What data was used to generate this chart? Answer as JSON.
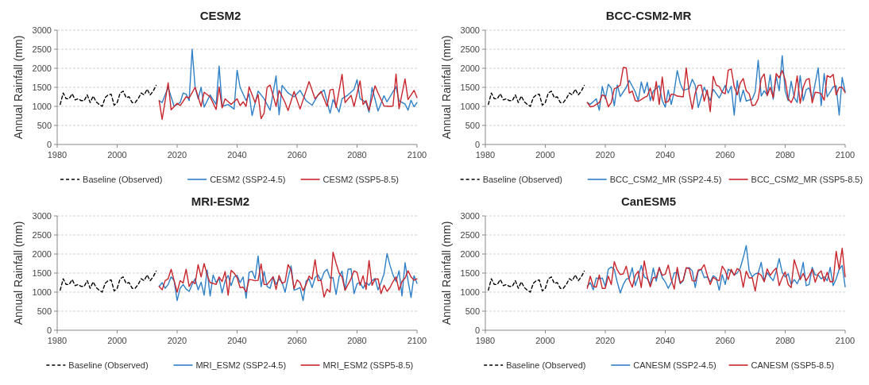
{
  "chart_data": [
    {
      "type": "line",
      "title": "CESM2",
      "ylabel": "Annual Rainfall (mm)",
      "xlim": [
        1980,
        2100
      ],
      "xticks": [
        1980,
        2000,
        2020,
        2040,
        2060,
        2080,
        2100
      ],
      "ylim": [
        0,
        3000
      ],
      "yticks": [
        0,
        500,
        1000,
        1500,
        2000,
        2500,
        3000
      ],
      "grid": "y",
      "legend": "bottom",
      "series": [
        {
          "name": "Baseline (Observed)",
          "color": "#000000",
          "line_style": "dashed",
          "x": [
            1981,
            1982,
            1983,
            1984,
            1985,
            1986,
            1987,
            1988,
            1989,
            1990,
            1991,
            1992,
            1993,
            1994,
            1995,
            1996,
            1997,
            1998,
            1999,
            2000,
            2001,
            2002,
            2003,
            2004,
            2005,
            2006,
            2007,
            2008,
            2009,
            2010,
            2011,
            2012,
            2013
          ],
          "values": [
            1050,
            1350,
            1200,
            1200,
            1330,
            1170,
            1200,
            1150,
            1150,
            1300,
            1100,
            1270,
            1120,
            1050,
            1000,
            1230,
            1300,
            1320,
            1030,
            1100,
            1350,
            1400,
            1230,
            1250,
            1100,
            1100,
            1200,
            1350,
            1300,
            1450,
            1300,
            1400,
            1550
          ]
        },
        {
          "name": "CESM2 (SSP2-4.5)",
          "color": "#2f80c6",
          "x": [
            2014,
            2015,
            2017,
            2019,
            2021,
            2022,
            2023,
            2024,
            2025,
            2026,
            2027,
            2028,
            2029,
            2031,
            2033,
            2034,
            2035,
            2037,
            2039,
            2040,
            2041,
            2043,
            2044,
            2045,
            2047,
            2049,
            2051,
            2053,
            2054,
            2055,
            2057,
            2059,
            2061,
            2063,
            2065,
            2067,
            2069,
            2071,
            2072,
            2074,
            2075,
            2077,
            2079,
            2080,
            2081,
            2083,
            2084,
            2085,
            2087,
            2089,
            2090,
            2093,
            2094,
            2096,
            2097,
            2098,
            2099,
            2100
          ],
          "values": [
            1150,
            1100,
            1500,
            1000,
            1100,
            1350,
            1320,
            1150,
            2500,
            1500,
            1200,
            1500,
            980,
            1300,
            1050,
            2060,
            1000,
            1050,
            930,
            1950,
            1500,
            1150,
            1330,
            760,
            1400,
            1200,
            900,
            1800,
            780,
            1550,
            1350,
            1250,
            1420,
            1150,
            1030,
            1300,
            1430,
            820,
            1180,
            850,
            1200,
            1300,
            1450,
            1700,
            1200,
            1100,
            850,
            1490,
            880,
            1280,
            1120,
            1520,
            1150,
            1060,
            900,
            1160,
            990,
            1100
          ]
        },
        {
          "name": "CESM2 (SSP5-8.5)",
          "color": "#c8252c",
          "x": [
            2014,
            2015,
            2017,
            2018,
            2020,
            2021,
            2023,
            2024,
            2026,
            2028,
            2029,
            2031,
            2033,
            2034,
            2035,
            2036,
            2038,
            2040,
            2041,
            2042,
            2043,
            2044,
            2046,
            2047,
            2048,
            2049,
            2050,
            2051,
            2053,
            2054,
            2056,
            2057,
            2059,
            2061,
            2064,
            2066,
            2068,
            2070,
            2071,
            2072,
            2073,
            2075,
            2076,
            2078,
            2079,
            2081,
            2082,
            2083,
            2084,
            2086,
            2087,
            2089,
            2091,
            2092,
            2093,
            2094,
            2096,
            2097,
            2099,
            2100
          ],
          "values": [
            1150,
            660,
            1620,
            910,
            1080,
            1020,
            1250,
            1220,
            1500,
            1000,
            1370,
            1250,
            920,
            1510,
            960,
            1200,
            1050,
            1200,
            1020,
            1120,
            1000,
            1510,
            1100,
            1310,
            680,
            820,
            1500,
            1560,
            1000,
            1420,
            1100,
            890,
            1390,
            930,
            1650,
            1200,
            1390,
            1000,
            1430,
            1450,
            970,
            1840,
            1100,
            1290,
            1000,
            1670,
            1050,
            1150,
            900,
            1540,
            1350,
            1010,
            1000,
            1010,
            1850,
            940,
            1720,
            1180,
            1420,
            1230
          ]
        }
      ]
    },
    {
      "type": "line",
      "title": "BCC-CSM2-MR",
      "ylabel": "Annual Rainfall (mm)",
      "xlim": [
        1980,
        2100
      ],
      "xticks": [
        1980,
        2000,
        2020,
        2040,
        2060,
        2080,
        2100
      ],
      "ylim": [
        0,
        3000
      ],
      "yticks": [
        0,
        500,
        1000,
        1500,
        2000,
        2500,
        3000
      ],
      "grid": "y",
      "legend": "bottom",
      "series": [
        {
          "name": "Baseline (Observed)",
          "color": "#000000",
          "line_style": "dashed",
          "x": [
            1981,
            1982,
            1983,
            1984,
            1985,
            1986,
            1987,
            1988,
            1989,
            1990,
            1991,
            1992,
            1993,
            1994,
            1995,
            1996,
            1997,
            1998,
            1999,
            2000,
            2001,
            2002,
            2003,
            2004,
            2005,
            2006,
            2007,
            2008,
            2009,
            2010,
            2011,
            2012,
            2013
          ],
          "values": [
            1050,
            1350,
            1200,
            1200,
            1330,
            1170,
            1200,
            1150,
            1150,
            1300,
            1100,
            1270,
            1120,
            1050,
            1000,
            1230,
            1300,
            1320,
            1030,
            1100,
            1350,
            1400,
            1230,
            1250,
            1100,
            1100,
            1200,
            1350,
            1300,
            1450,
            1300,
            1400,
            1550
          ]
        },
        {
          "name": "BCC_CSM2_MR (SSP2-4.5)",
          "color": "#2f80c6",
          "x": [
            2014,
            2015,
            2017,
            2018,
            2019,
            2020,
            2021,
            2022,
            2023,
            2024,
            2025,
            2027,
            2028,
            2030,
            2031,
            2032,
            2033,
            2034,
            2035,
            2036,
            2038,
            2039,
            2040,
            2041,
            2042,
            2043,
            2044,
            2045,
            2046,
            2048,
            2049,
            2050,
            2051,
            2053,
            2055,
            2056,
            2058,
            2060,
            2061,
            2062,
            2063,
            2064,
            2065,
            2066,
            2067,
            2069,
            2070,
            2071,
            2072,
            2073,
            2074,
            2075,
            2076,
            2077,
            2078,
            2079,
            2080,
            2081,
            2082,
            2083,
            2084,
            2085,
            2086,
            2087,
            2088,
            2089,
            2091,
            2092,
            2093,
            2094,
            2096,
            2097,
            2098,
            2099,
            2100
          ],
          "values": [
            1100,
            1050,
            1200,
            900,
            1520,
            1200,
            1580,
            1480,
            1020,
            1560,
            1260,
            1500,
            1680,
            1380,
            1150,
            1640,
            1350,
            1630,
            1150,
            1400,
            1540,
            1150,
            980,
            1430,
            1050,
            1400,
            1940,
            1600,
            1420,
            1470,
            1710,
            1550,
            970,
            1500,
            1150,
            1450,
            1220,
            1550,
            1350,
            1530,
            770,
            1680,
            1120,
            1430,
            1140,
            1190,
            1380,
            2210,
            1270,
            1410,
            1300,
            1830,
            1190,
            1790,
            1410,
            2330,
            1400,
            1150,
            1660,
            1230,
            1100,
            1810,
            1150,
            1440,
            1480,
            1200,
            2010,
            1020,
            1860,
            1250,
            1510,
            1540,
            770,
            1760,
            1380
          ]
        },
        {
          "name": "BCC_CSM2_MR (SSP5-8.5)",
          "color": "#c8252c",
          "x": [
            2014,
            2015,
            2016,
            2017,
            2018,
            2019,
            2020,
            2021,
            2022,
            2023,
            2024,
            2025,
            2026,
            2027,
            2028,
            2029,
            2030,
            2031,
            2032,
            2033,
            2034,
            2035,
            2036,
            2037,
            2038,
            2039,
            2040,
            2041,
            2042,
            2043,
            2044,
            2045,
            2046,
            2047,
            2048,
            2049,
            2050,
            2051,
            2052,
            2053,
            2054,
            2055,
            2056,
            2057,
            2058,
            2059,
            2060,
            2061,
            2062,
            2063,
            2064,
            2065,
            2066,
            2067,
            2068,
            2069,
            2070,
            2071,
            2072,
            2073,
            2074,
            2075,
            2076,
            2077,
            2078,
            2079,
            2080,
            2081,
            2082,
            2083,
            2084,
            2085,
            2086,
            2087,
            2088,
            2089,
            2090,
            2091,
            2092,
            2093,
            2094,
            2095,
            2096,
            2097,
            2098,
            2099,
            2100
          ],
          "values": [
            1100,
            990,
            1000,
            1050,
            1100,
            1300,
            1270,
            990,
            1100,
            1460,
            1500,
            1560,
            2020,
            2010,
            1350,
            1400,
            1150,
            1130,
            1180,
            1230,
            1270,
            1480,
            1150,
            1650,
            1050,
            1770,
            1100,
            1130,
            1320,
            1310,
            1270,
            1260,
            1250,
            2010,
            1350,
            930,
            1350,
            1550,
            1560,
            1140,
            1430,
            860,
            1790,
            1560,
            1520,
            1370,
            1330,
            1950,
            1980,
            1520,
            1300,
            1610,
            1730,
            1410,
            1330,
            1020,
            1040,
            1200,
            1730,
            1850,
            1280,
            1500,
            1230,
            1860,
            1750,
            1940,
            1700,
            1200,
            1100,
            1280,
            1800,
            1080,
            1500,
            1700,
            1730,
            1090,
            1370,
            1360,
            1330,
            1160,
            1810,
            1760,
            1840,
            1300,
            1500,
            1500,
            1360
          ]
        }
      ]
    },
    {
      "type": "line",
      "title": "MRI-ESM2",
      "ylabel": "Annual Rainfall (mm)",
      "xlim": [
        1980,
        2100
      ],
      "xticks": [
        1980,
        2000,
        2020,
        2040,
        2060,
        2080,
        2100
      ],
      "ylim": [
        0,
        3000
      ],
      "yticks": [
        0,
        500,
        1000,
        1500,
        2000,
        2500,
        3000
      ],
      "grid": "y",
      "legend": "bottom",
      "series": [
        {
          "name": "Baseline (Observed)",
          "color": "#000000",
          "line_style": "dashed",
          "x": [
            1981,
            1982,
            1983,
            1984,
            1985,
            1986,
            1987,
            1988,
            1989,
            1990,
            1991,
            1992,
            1993,
            1994,
            1995,
            1996,
            1997,
            1998,
            1999,
            2000,
            2001,
            2002,
            2003,
            2004,
            2005,
            2006,
            2007,
            2008,
            2009,
            2010,
            2011,
            2012,
            2013
          ],
          "values": [
            1050,
            1350,
            1200,
            1200,
            1330,
            1170,
            1200,
            1150,
            1150,
            1300,
            1100,
            1270,
            1120,
            1050,
            1000,
            1230,
            1300,
            1320,
            1030,
            1100,
            1350,
            1400,
            1230,
            1250,
            1100,
            1100,
            1200,
            1350,
            1300,
            1450,
            1300,
            1400,
            1550
          ]
        },
        {
          "name": "MRI_ESM2 (SSP2-4.5)",
          "color": "#2f80c6",
          "x": [
            2014,
            2015,
            2016,
            2017,
            2018,
            2019,
            2020,
            2021,
            2022,
            2023,
            2024,
            2025,
            2026,
            2027,
            2028,
            2029,
            2030,
            2031,
            2032,
            2033,
            2034,
            2035,
            2036,
            2037,
            2038,
            2039,
            2040,
            2041,
            2042,
            2043,
            2044,
            2045,
            2046,
            2047,
            2048,
            2049,
            2050,
            2051,
            2052,
            2053,
            2054,
            2055,
            2056,
            2057,
            2058,
            2059,
            2060,
            2061,
            2062,
            2063,
            2064,
            2065,
            2066,
            2067,
            2068,
            2069,
            2070,
            2071,
            2072,
            2073,
            2074,
            2075,
            2076,
            2077,
            2078,
            2079,
            2080,
            2081,
            2082,
            2083,
            2084,
            2085,
            2086,
            2087,
            2088,
            2089,
            2090,
            2091,
            2092,
            2093,
            2094,
            2095,
            2096,
            2097,
            2098,
            2099,
            2100
          ],
          "values": [
            1150,
            1250,
            1100,
            1200,
            1400,
            1300,
            780,
            1100,
            1200,
            1080,
            1020,
            1200,
            1350,
            1060,
            1260,
            920,
            1580,
            900,
            1450,
            1250,
            1360,
            980,
            1300,
            1440,
            1170,
            1400,
            1440,
            1250,
            1400,
            840,
            1520,
            1550,
            1350,
            1950,
            1140,
            1540,
            1150,
            1100,
            1400,
            1200,
            1350,
            1250,
            1000,
            1370,
            1690,
            1050,
            1080,
            1120,
            780,
            1290,
            1350,
            1120,
            1380,
            1450,
            1300,
            1520,
            1600,
            1370,
            1380,
            940,
            1400,
            1550,
            1050,
            1600,
            1610,
            960,
            1220,
            1250,
            1100,
            1250,
            1180,
            1300,
            1360,
            1060,
            1250,
            1480,
            2010,
            1700,
            1450,
            1280,
            1560,
            900,
            1770,
            1300,
            860,
            1430,
            1230
          ]
        },
        {
          "name": "MRI_ESM2 (SSP5-8.5)",
          "color": "#c8252c",
          "x": [
            2014,
            2015,
            2016,
            2017,
            2018,
            2019,
            2020,
            2021,
            2022,
            2023,
            2024,
            2025,
            2026,
            2027,
            2028,
            2029,
            2030,
            2031,
            2032,
            2033,
            2034,
            2035,
            2036,
            2037,
            2038,
            2039,
            2040,
            2041,
            2042,
            2043,
            2044,
            2045,
            2046,
            2047,
            2048,
            2049,
            2050,
            2051,
            2052,
            2053,
            2054,
            2055,
            2056,
            2057,
            2058,
            2059,
            2060,
            2061,
            2062,
            2063,
            2064,
            2065,
            2066,
            2067,
            2068,
            2069,
            2070,
            2071,
            2072,
            2073,
            2074,
            2075,
            2076,
            2077,
            2078,
            2079,
            2080,
            2081,
            2082,
            2083,
            2084,
            2085,
            2086,
            2087,
            2088,
            2089,
            2090,
            2091,
            2092,
            2093,
            2094,
            2095,
            2096,
            2097,
            2098,
            2099,
            2100
          ],
          "values": [
            1150,
            1060,
            1300,
            1350,
            1600,
            1300,
            1000,
            1300,
            1240,
            1600,
            1150,
            1280,
            1220,
            1720,
            1400,
            1750,
            1450,
            1250,
            1230,
            1200,
            1400,
            1280,
            1540,
            920,
            1570,
            1500,
            1380,
            1120,
            1130,
            1000,
            1330,
            1320,
            1300,
            1310,
            1740,
            1200,
            1200,
            1300,
            1400,
            1070,
            1440,
            1230,
            1270,
            1720,
            1580,
            1090,
            1320,
            1250,
            1040,
            1200,
            1420,
            1340,
            1850,
            1300,
            1310,
            870,
            1080,
            1000,
            2050,
            1760,
            1500,
            1400,
            1050,
            1200,
            1350,
            1560,
            1520,
            1180,
            1430,
            1070,
            1830,
            1180,
            1340,
            1350,
            960,
            1180,
            1020,
            1120,
            1280,
            1400,
            1050,
            1280,
            1370,
            1560,
            1400,
            1310,
            1350
          ]
        }
      ]
    },
    {
      "type": "line",
      "title": "CanESM5",
      "ylabel": "Annual Rainfall (mm)",
      "xlim": [
        1980,
        2100
      ],
      "xticks": [
        1980,
        2000,
        2020,
        2040,
        2060,
        2080,
        2100
      ],
      "ylim": [
        0,
        3000
      ],
      "yticks": [
        0,
        500,
        1000,
        1500,
        2000,
        2500,
        3000
      ],
      "grid": "y",
      "legend": "bottom",
      "series": [
        {
          "name": "Baseline (Observed)",
          "color": "#000000",
          "line_style": "dashed",
          "x": [
            1981,
            1982,
            1983,
            1984,
            1985,
            1986,
            1987,
            1988,
            1989,
            1990,
            1991,
            1992,
            1993,
            1994,
            1995,
            1996,
            1997,
            1998,
            1999,
            2000,
            2001,
            2002,
            2003,
            2004,
            2005,
            2006,
            2007,
            2008,
            2009,
            2010,
            2011,
            2012,
            2013
          ],
          "values": [
            1050,
            1350,
            1200,
            1200,
            1330,
            1170,
            1200,
            1150,
            1150,
            1300,
            1100,
            1270,
            1120,
            1050,
            1000,
            1230,
            1300,
            1320,
            1030,
            1100,
            1350,
            1400,
            1230,
            1250,
            1100,
            1100,
            1200,
            1350,
            1300,
            1450,
            1300,
            1400,
            1550
          ]
        },
        {
          "name": "CANESM (SSP2-4.5)",
          "color": "#2f80c6",
          "x": [
            2014,
            2015,
            2016,
            2017,
            2018,
            2019,
            2020,
            2021,
            2022,
            2023,
            2024,
            2025,
            2026,
            2027,
            2028,
            2029,
            2030,
            2031,
            2032,
            2033,
            2034,
            2035,
            2036,
            2037,
            2038,
            2039,
            2040,
            2041,
            2042,
            2043,
            2044,
            2045,
            2046,
            2047,
            2048,
            2049,
            2050,
            2051,
            2052,
            2053,
            2054,
            2055,
            2056,
            2057,
            2058,
            2059,
            2060,
            2061,
            2062,
            2063,
            2064,
            2065,
            2066,
            2067,
            2068,
            2069,
            2070,
            2071,
            2072,
            2073,
            2074,
            2075,
            2076,
            2077,
            2078,
            2079,
            2080,
            2081,
            2082,
            2083,
            2084,
            2085,
            2086,
            2087,
            2088,
            2089,
            2090,
            2091,
            2092,
            2093,
            2094,
            2095,
            2096,
            2097,
            2098,
            2099,
            2100
          ],
          "values": [
            1150,
            1250,
            1060,
            1370,
            1350,
            1370,
            1150,
            1600,
            1660,
            1600,
            1260,
            980,
            1200,
            1340,
            1360,
            1640,
            1170,
            1400,
            1700,
            1400,
            1350,
            1200,
            1630,
            1290,
            1650,
            1380,
            1270,
            1100,
            1250,
            1500,
            1520,
            1220,
            1300,
            1630,
            1640,
            1560,
            1120,
            1550,
            1600,
            1380,
            1400,
            1270,
            1430,
            1380,
            1050,
            1460,
            1200,
            1600,
            1550,
            1450,
            1500,
            1630,
            1900,
            2220,
            1560,
            1400,
            1480,
            1500,
            1780,
            1300,
            1510,
            1400,
            1300,
            1550,
            1880,
            1520,
            1400,
            1480,
            1200,
            1330,
            1220,
            1400,
            1780,
            1170,
            1200,
            1650,
            1450,
            1450,
            1350,
            1400,
            1300,
            1650,
            1170,
            1350,
            1600,
            1700,
            1140
          ]
        },
        {
          "name": "CANESM (SSP5-8.5)",
          "color": "#c8252c",
          "x": [
            2014,
            2015,
            2016,
            2017,
            2018,
            2019,
            2020,
            2021,
            2022,
            2023,
            2024,
            2025,
            2026,
            2027,
            2028,
            2029,
            2030,
            2031,
            2032,
            2033,
            2034,
            2035,
            2036,
            2037,
            2038,
            2039,
            2040,
            2041,
            2042,
            2043,
            2044,
            2045,
            2046,
            2047,
            2048,
            2049,
            2050,
            2051,
            2052,
            2053,
            2054,
            2055,
            2056,
            2057,
            2058,
            2059,
            2060,
            2061,
            2062,
            2063,
            2064,
            2065,
            2066,
            2067,
            2068,
            2069,
            2070,
            2071,
            2072,
            2073,
            2074,
            2075,
            2076,
            2077,
            2078,
            2079,
            2080,
            2081,
            2082,
            2083,
            2084,
            2085,
            2086,
            2087,
            2088,
            2089,
            2090,
            2091,
            2092,
            2093,
            2094,
            2095,
            2096,
            2097,
            2098,
            2099,
            2100
          ],
          "values": [
            1100,
            1420,
            1150,
            1130,
            1450,
            1100,
            1100,
            1420,
            1200,
            1800,
            1580,
            1460,
            1480,
            1680,
            1320,
            1130,
            1440,
            1550,
            1120,
            1820,
            1400,
            1140,
            1380,
            1380,
            1640,
            1440,
            1470,
            1710,
            1340,
            1080,
            1650,
            1240,
            1320,
            1640,
            1620,
            1300,
            1290,
            1580,
            1600,
            1720,
            1450,
            1200,
            1390,
            1330,
            1300,
            1680,
            1560,
            1330,
            1600,
            1440,
            1620,
            1560,
            1130,
            1550,
            1370,
            1380,
            1030,
            1500,
            1440,
            1270,
            1610,
            1440,
            1550,
            1630,
            1170,
            1380,
            1530,
            1200,
            1120,
            1850,
            1600,
            1330,
            1490,
            1300,
            1430,
            1600,
            1260,
            1480,
            1560,
            1280,
            1520,
            1270,
            1280,
            2070,
            1600,
            2150,
            1400
          ]
        }
      ]
    }
  ]
}
